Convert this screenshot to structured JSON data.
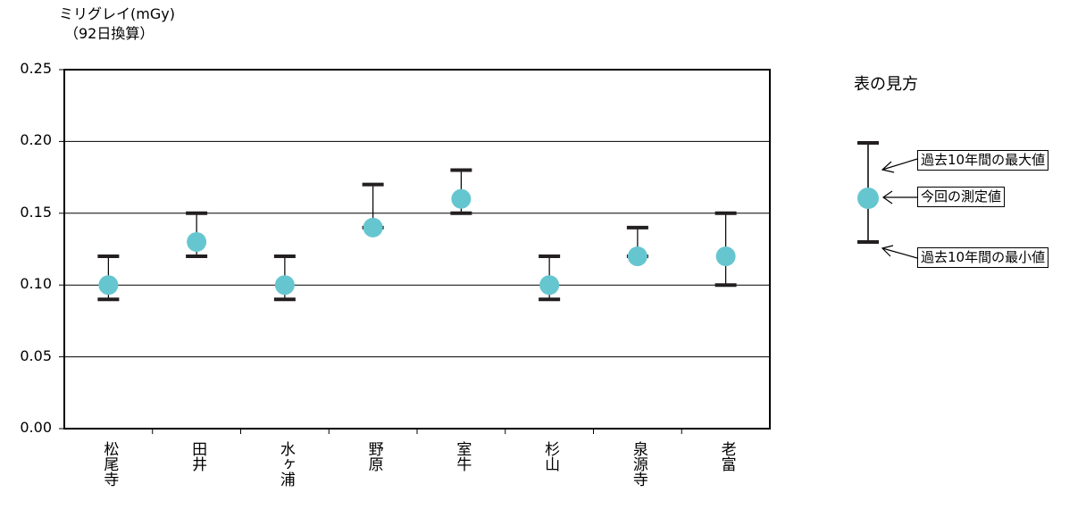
{
  "chart_data": {
    "type": "scatter",
    "ylabel_line1": "ミリグレイ(mGy)",
    "ylabel_line2": "（92日換算）",
    "ylim": [
      0,
      0.25
    ],
    "yticks": [
      "0.00",
      "0.05",
      "0.10",
      "0.15",
      "0.20",
      "0.25"
    ],
    "grid": true,
    "categories": [
      "松尾寺",
      "田井",
      "水ヶ浦",
      "野原",
      "室牛",
      "杉山",
      "泉源寺",
      "老富"
    ],
    "series": [
      {
        "name": "今回の測定値",
        "values": [
          0.1,
          0.13,
          0.1,
          0.14,
          0.16,
          0.1,
          0.12,
          0.12
        ]
      },
      {
        "name": "過去10年間の最大値",
        "values": [
          0.12,
          0.15,
          0.12,
          0.17,
          0.18,
          0.12,
          0.14,
          0.15
        ]
      },
      {
        "name": "過去10年間の最小値",
        "values": [
          0.09,
          0.12,
          0.09,
          0.14,
          0.15,
          0.09,
          0.12,
          0.1
        ]
      }
    ],
    "marker_color": "#66c6d0",
    "legend": {
      "title": "表の見方",
      "max_label": "過去10年間の最大値",
      "current_label": "今回の測定値",
      "min_label": "過去10年間の最小値",
      "placement": "right"
    }
  }
}
